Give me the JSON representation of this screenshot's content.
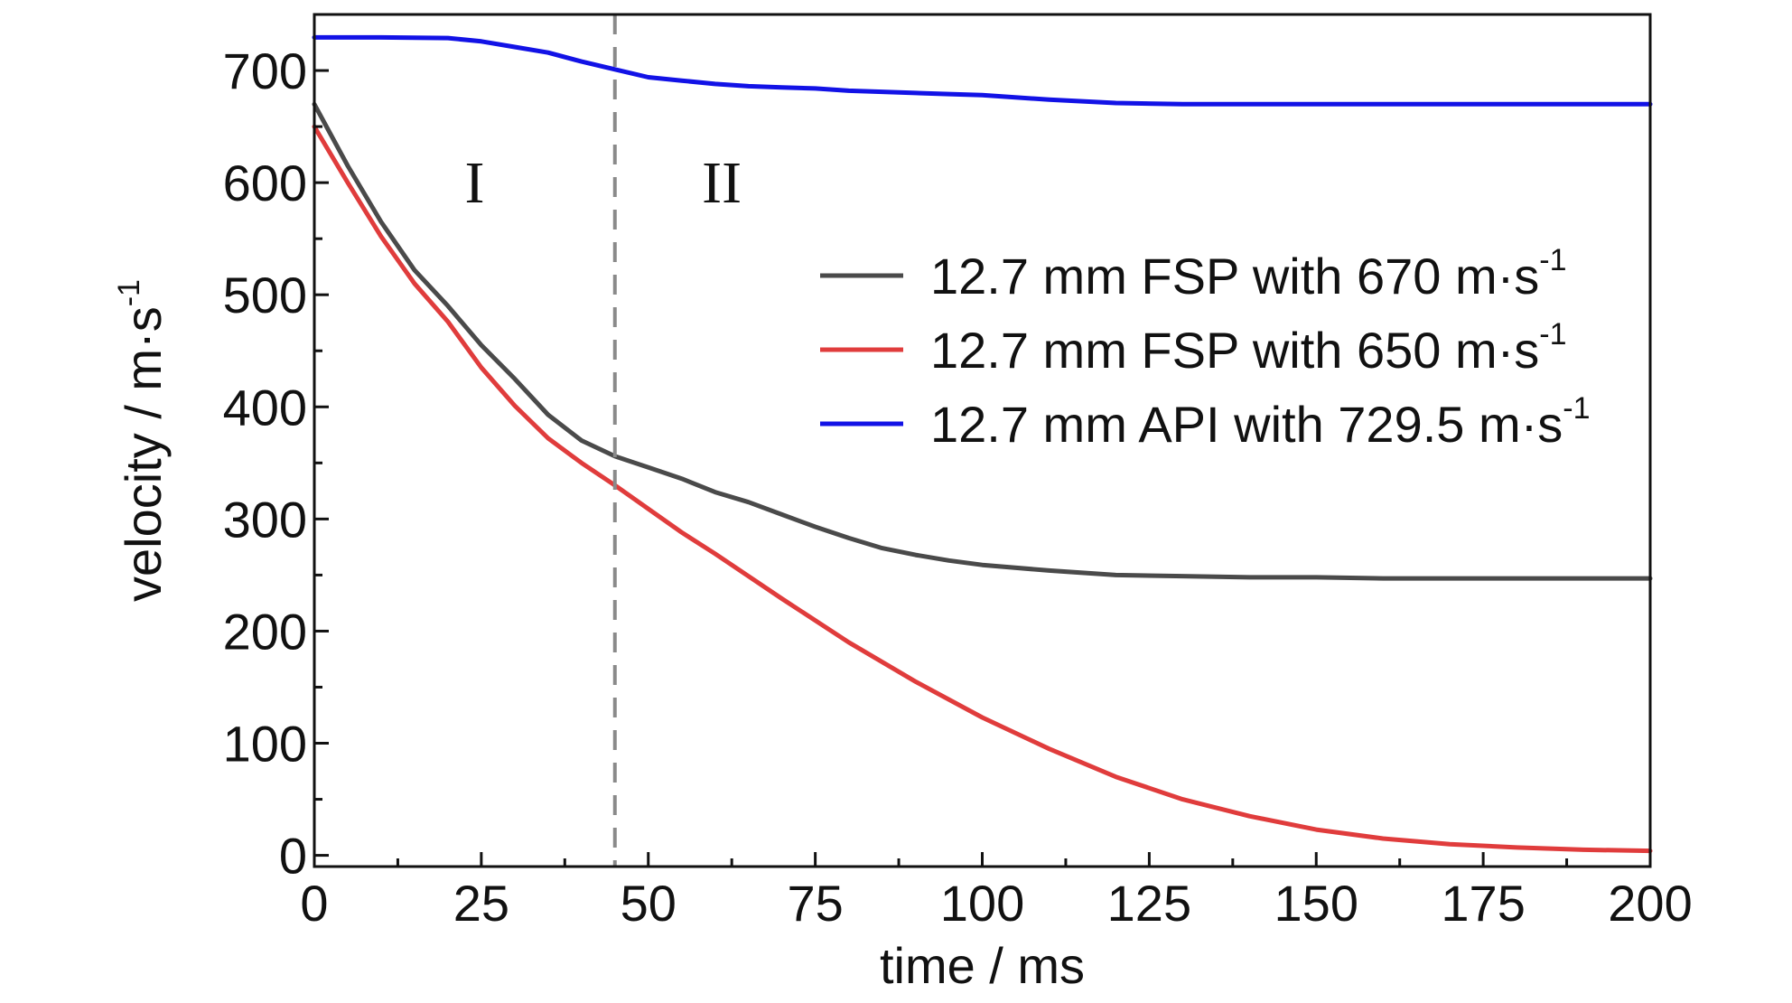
{
  "chart_data": {
    "type": "line",
    "xlabel": "time / ms",
    "ylabel": "velocity / m·s",
    "ylabel_sup": "-1",
    "xlim": [
      0,
      200
    ],
    "ylim": [
      -10,
      750
    ],
    "xticks": [
      0,
      25,
      50,
      75,
      100,
      125,
      150,
      175,
      200
    ],
    "xtick_labels": [
      "0",
      "25",
      "50",
      "75",
      "100",
      "125",
      "150",
      "175",
      "200"
    ],
    "yticks": [
      0,
      100,
      200,
      300,
      400,
      500,
      600,
      700
    ],
    "ytick_labels": [
      "0",
      "100",
      "200",
      "300",
      "400",
      "500",
      "600",
      "700"
    ],
    "grid": false,
    "legend_position": "right",
    "vline": {
      "x": 45,
      "style": "dashed",
      "color": "#8a8a8a"
    },
    "regions": [
      {
        "label": "I",
        "x": 24,
        "y": 600
      },
      {
        "label": "II",
        "x": 61,
        "y": 600
      }
    ],
    "series": [
      {
        "name": "12.7 mm FSP with 670 m·s",
        "name_sup": "-1",
        "color": "#4a4a4a",
        "x": [
          0,
          5,
          10,
          15,
          20,
          25,
          30,
          35,
          40,
          45,
          50,
          55,
          60,
          65,
          70,
          75,
          80,
          85,
          90,
          95,
          100,
          110,
          120,
          130,
          140,
          150,
          160,
          170,
          180,
          190,
          200
        ],
        "y": [
          670,
          615,
          565,
          522,
          490,
          455,
          425,
          393,
          370,
          356,
          346,
          336,
          324,
          315,
          304,
          293,
          283,
          274,
          268,
          263,
          259,
          254,
          250,
          249,
          248,
          248,
          247,
          247,
          247,
          247,
          247
        ]
      },
      {
        "name": "12.7 mm FSP with 650 m·s",
        "name_sup": "-1",
        "color": "#e03c3c",
        "x": [
          0,
          5,
          10,
          15,
          20,
          25,
          30,
          35,
          40,
          45,
          50,
          55,
          60,
          70,
          80,
          90,
          100,
          110,
          120,
          130,
          140,
          150,
          160,
          170,
          180,
          190,
          200
        ],
        "y": [
          650,
          600,
          552,
          510,
          476,
          435,
          401,
          372,
          350,
          330,
          309,
          288,
          269,
          229,
          190,
          155,
          123,
          95,
          70,
          50,
          35,
          23,
          15,
          10,
          7,
          5,
          4
        ]
      },
      {
        "name": "12.7 mm API with 729.5 m·s",
        "name_sup": "-1",
        "color": "#1212e6",
        "x": [
          0,
          10,
          20,
          25,
          30,
          35,
          40,
          45,
          50,
          55,
          60,
          65,
          70,
          75,
          80,
          85,
          90,
          95,
          100,
          110,
          120,
          130,
          140,
          150,
          160,
          170,
          180,
          190,
          200
        ],
        "y": [
          729.5,
          729.5,
          729,
          726,
          721,
          716,
          708,
          701,
          694,
          691,
          688,
          686,
          685,
          684,
          682,
          681,
          680,
          679,
          678,
          674,
          671,
          670,
          670,
          670,
          670,
          670,
          670,
          670,
          670
        ]
      }
    ]
  }
}
